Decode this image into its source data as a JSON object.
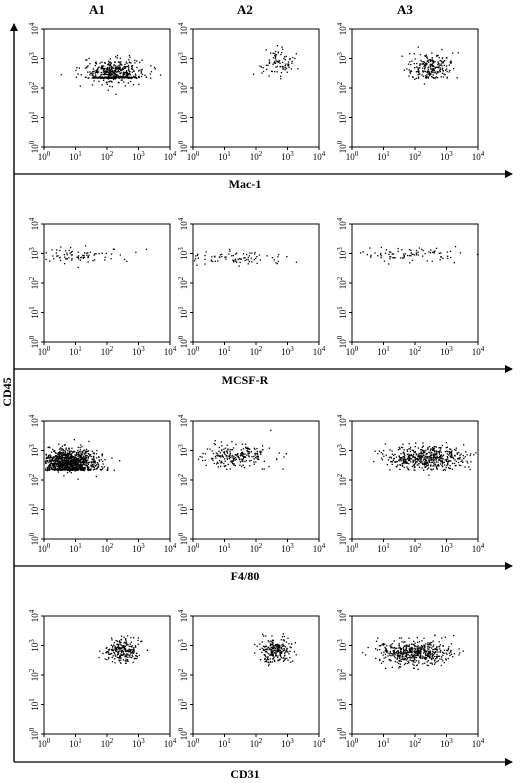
{
  "figure": {
    "column_headers": [
      "A1",
      "A2",
      "A3"
    ],
    "y_axis_label": "CD45",
    "row_axis_labels": [
      "Mac-1",
      "MCSF-R",
      "F4/80",
      "CD31"
    ]
  },
  "chart_data": {
    "type": "scatter",
    "title": "",
    "ylabel": "CD45",
    "xscale": "log",
    "yscale": "log",
    "xlim": [
      1,
      10000
    ],
    "ylim": [
      1,
      10000
    ],
    "tick_labels": [
      "10^0",
      "10^1",
      "10^2",
      "10^3",
      "10^4"
    ],
    "grid": false,
    "columns": [
      "A1",
      "A2",
      "A3"
    ],
    "rows": [
      {
        "marker": "Mac-1",
        "panels": [
          {
            "column": "A1",
            "cloud": {
              "x_center": 150,
              "y_center": 300,
              "x_spread_decades": 0.45,
              "y_spread_decades": 0.25,
              "density": "high"
            }
          },
          {
            "column": "A2",
            "cloud": {
              "x_center": 450,
              "y_center": 600,
              "x_spread_decades": 0.25,
              "y_spread_decades": 0.25,
              "density": "low"
            }
          },
          {
            "column": "A3",
            "cloud": {
              "x_center": 300,
              "y_center": 500,
              "x_spread_decades": 0.35,
              "y_spread_decades": 0.25,
              "density": "medium"
            }
          }
        ]
      },
      {
        "marker": "MCSF-R",
        "panels": [
          {
            "column": "A1",
            "cloud": {
              "x_center": 10,
              "y_center": 900,
              "x_spread_decades": 0.9,
              "y_spread_decades": 0.12,
              "density": "low"
            }
          },
          {
            "column": "A2",
            "cloud": {
              "x_center": 20,
              "y_center": 700,
              "x_spread_decades": 0.9,
              "y_spread_decades": 0.12,
              "density": "low"
            }
          },
          {
            "column": "A3",
            "cloud": {
              "x_center": 60,
              "y_center": 1000,
              "x_spread_decades": 0.8,
              "y_spread_decades": 0.12,
              "density": "low"
            }
          }
        ]
      },
      {
        "marker": "F4/80",
        "panels": [
          {
            "column": "A1",
            "cloud": {
              "x_center": 6,
              "y_center": 400,
              "x_spread_decades": 0.45,
              "y_spread_decades": 0.22,
              "density": "very-high"
            }
          },
          {
            "column": "A2",
            "cloud": {
              "x_center": 20,
              "y_center": 700,
              "x_spread_decades": 0.6,
              "y_spread_decades": 0.2,
              "density": "medium"
            }
          },
          {
            "column": "A3",
            "cloud": {
              "x_center": 200,
              "y_center": 600,
              "x_spread_decades": 0.6,
              "y_spread_decades": 0.2,
              "density": "high"
            }
          }
        ]
      },
      {
        "marker": "CD31",
        "panels": [
          {
            "column": "A1",
            "cloud": {
              "x_center": 300,
              "y_center": 700,
              "x_spread_decades": 0.25,
              "y_spread_decades": 0.2,
              "density": "medium"
            }
          },
          {
            "column": "A2",
            "cloud": {
              "x_center": 400,
              "y_center": 700,
              "x_spread_decades": 0.25,
              "y_spread_decades": 0.2,
              "density": "medium"
            }
          },
          {
            "column": "A3",
            "cloud": {
              "x_center": 100,
              "y_center": 600,
              "x_spread_decades": 0.6,
              "y_spread_decades": 0.2,
              "density": "high"
            }
          }
        ]
      }
    ]
  }
}
